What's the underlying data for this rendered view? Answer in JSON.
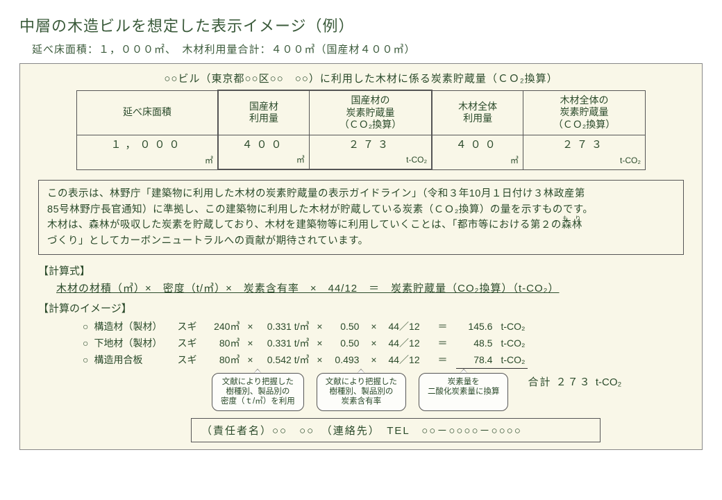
{
  "title": "中層の木造ビルを想定した表示イメージ（例）",
  "subtitle": "延べ床面積：１，０００㎡、　木材利用量合計：４００㎥（国産材４００㎥）",
  "panel_title": "○○ビル（東京都○○区○○　○○）に利用した木材に係る炭素貯蔵量（ＣＯ₂換算）",
  "table": {
    "headers": [
      "延べ床面積",
      "国産材\n利用量",
      "国産材の\n炭素貯蔵量\n（ＣＯ₂換算）",
      "木材全体\n利用量",
      "木材全体の\n炭素貯蔵量\n（ＣＯ₂換算）"
    ],
    "values": [
      "１，０００",
      "４００",
      "２７３",
      "４００",
      "２７３"
    ],
    "units": [
      "㎡",
      "㎥",
      "t-CO₂",
      "㎥",
      "t-CO₂"
    ]
  },
  "note": {
    "l1": "この表示は、林野庁「建築物に利用した木材の炭素貯蔵量の表示ガイドライン」（令和３年10月１日付け３林政産第",
    "l2a": "85号林野庁長官通知）に準拠し、この建築物に利用した木材が貯蔵している炭素（ＣＯ₂換算）の量を示すもの",
    "l2b": "です。",
    "l3a": "木材は、森林が吸収した炭素を貯蔵しており、木材を建築物等に利用していくことは、「都市等における第２の",
    "l3b": "森林",
    "l3ruby": "も　り",
    "l4": "づくり」としてカーボンニュートラルへの貢献が期待されています。"
  },
  "sec_formula": "【計算式】",
  "formula": "木材の材積（㎥）×　密度（t/㎥）×　炭素含有率　×　44/12　＝　炭素貯蔵量（CO₂換算）（t-CO₂）",
  "sec_image": "【計算のイメージ】",
  "calc": [
    {
      "mark": "○",
      "name": "構造材（製材）",
      "sp": "スギ",
      "vol": "240㎥",
      "den": "0.331 t/㎥",
      "cc": "0.50",
      "frac": "44／12",
      "res": "145.6",
      "unit": "t-CO₂"
    },
    {
      "mark": "○",
      "name": "下地材（製材）",
      "sp": "スギ",
      "vol": "80㎥",
      "den": "0.331 t/㎥",
      "cc": "0.50",
      "frac": "44／12",
      "res": "48.5",
      "unit": "t-CO₂"
    },
    {
      "mark": "○",
      "name": "構造用合板",
      "sp": "スギ",
      "vol": "80㎥",
      "den": "0.542 t/㎥",
      "cc": "0.493",
      "frac": "44／12",
      "res": "78.4",
      "unit": "t-CO₂"
    }
  ],
  "bubbles": [
    "文献により把握した\n樹種別、製品別の\n密度（ｔ/㎥）を利用",
    "文献により把握した\n樹種別、製品別の\n炭素含有率",
    "炭素量を\n二酸化炭素量に換算"
  ],
  "sum_label": "合計 ２７３",
  "sum_unit": "t-CO₂",
  "footer": "（責任者名）○○　○○　（連絡先）　TEL　○○－○○○○－○○○○"
}
